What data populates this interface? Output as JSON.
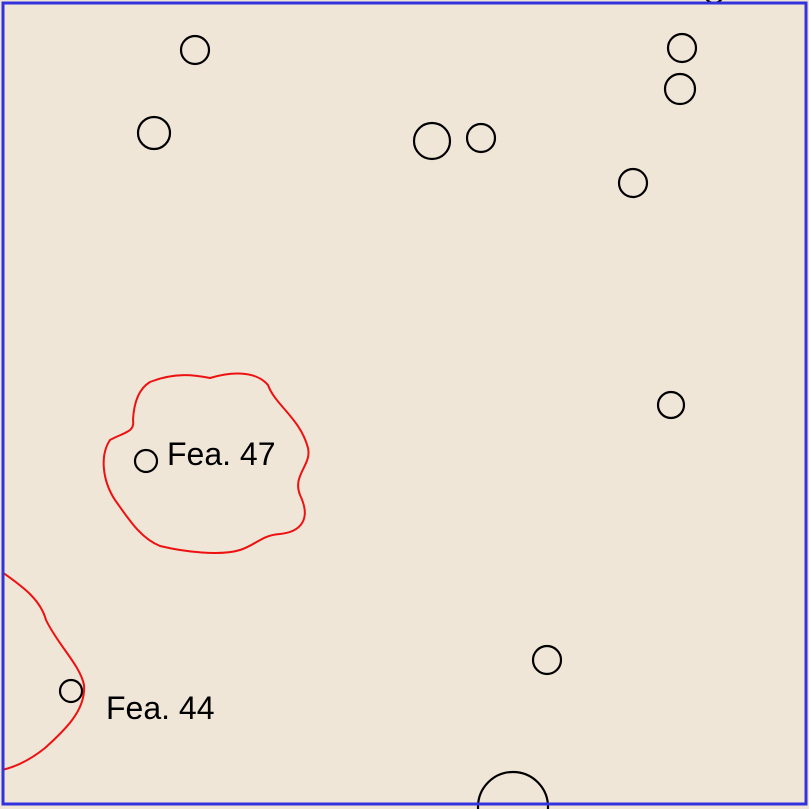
{
  "colors": {
    "background": "#f0e6d8",
    "border": "#3333dd",
    "feature_outline": "#ee1111",
    "post_outline": "#000000"
  },
  "features": [
    {
      "label": "Fea. 47"
    },
    {
      "label": "Fea. 44"
    }
  ]
}
